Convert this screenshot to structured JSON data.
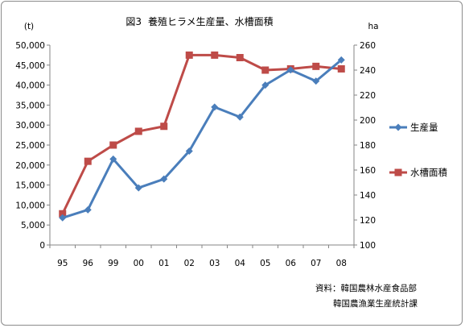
{
  "chart_data": {
    "type": "line",
    "title_prefix": "図3",
    "title": "養殖ヒラメ生産量、水槽面積",
    "y_left_unit": "(t)",
    "y_right_unit": "ha",
    "categories": [
      "95",
      "96",
      "99",
      "00",
      "01",
      "02",
      "03",
      "04",
      "05",
      "06",
      "07",
      "08"
    ],
    "y_left": {
      "min": 0,
      "max": 50000,
      "step": 5000,
      "ticks": [
        "0",
        "5,000",
        "10,000",
        "15,000",
        "20,000",
        "25,000",
        "30,000",
        "35,000",
        "40,000",
        "45,000",
        "50,000"
      ]
    },
    "y_right": {
      "min": 100,
      "max": 260,
      "step": 20,
      "ticks": [
        "100",
        "120",
        "140",
        "160",
        "180",
        "200",
        "220",
        "240",
        "260"
      ]
    },
    "series": [
      {
        "name": "生産量",
        "axis": "left",
        "color": "#4a7ebb",
        "marker": "diamond",
        "values": [
          6800,
          8800,
          21500,
          14300,
          16500,
          23500,
          34500,
          32000,
          40000,
          43800,
          41000,
          46300
        ]
      },
      {
        "name": "水槽面積",
        "axis": "right",
        "color": "#be4b48",
        "marker": "square",
        "values": [
          125,
          167,
          180,
          191,
          195,
          252,
          252,
          250,
          240,
          241,
          243,
          241
        ]
      }
    ],
    "grid": false,
    "legend_position": "right",
    "source_lines": [
      "資料：韓国農林水産食品部",
      "韓国農漁業生産統計課"
    ]
  }
}
